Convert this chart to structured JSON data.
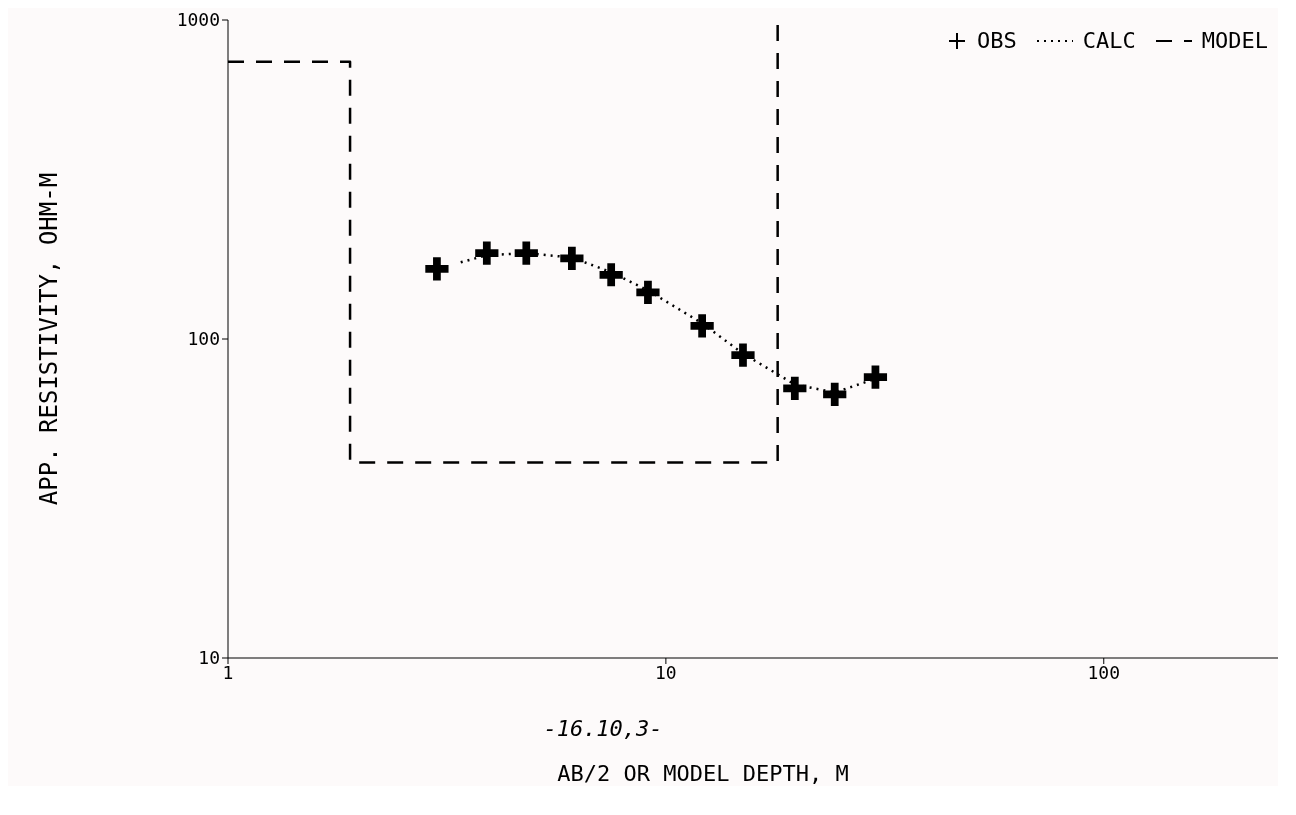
{
  "chart_data": {
    "type": "line",
    "xlabel": "AB/2 OR MODEL DEPTH, M",
    "ylabel": "APP. RESISTIVITY, OHM-M",
    "annotations": [
      "-16.10,3-"
    ],
    "log": "xy",
    "xlim": [
      1,
      250
    ],
    "xticks": [
      1,
      10,
      100
    ],
    "ylim": [
      10,
      1000
    ],
    "yticks": [
      10,
      100,
      1000
    ],
    "grid": false,
    "legend": "top right",
    "series": [
      {
        "name": "OBS",
        "type": "scatter",
        "marker": "cross",
        "color": "#000000",
        "x": [
          3.0,
          3.9,
          4.8,
          6.1,
          7.5,
          9.1,
          12.1,
          15,
          19.7,
          24.3,
          30.1
        ],
        "values": [
          166,
          186,
          186,
          179,
          159,
          140,
          110,
          89,
          70,
          67,
          76
        ]
      },
      {
        "name": "CALC",
        "line_style": "dotted",
        "color": "#000000",
        "x": [
          3.4,
          3.9,
          4.8,
          6.1,
          7.5,
          9.1,
          12.1,
          15,
          19.7,
          24.3,
          30.1
        ],
        "values": [
          174,
          183,
          186,
          180,
          162,
          142,
          112,
          90,
          72,
          68,
          75
        ]
      },
      {
        "name": "MODEL",
        "line_style": "dashed",
        "color": "#000000",
        "x": [
          1,
          1.9,
          1.9,
          18,
          18
        ],
        "values": [
          740,
          740,
          41,
          41,
          1000
        ]
      }
    ]
  }
}
